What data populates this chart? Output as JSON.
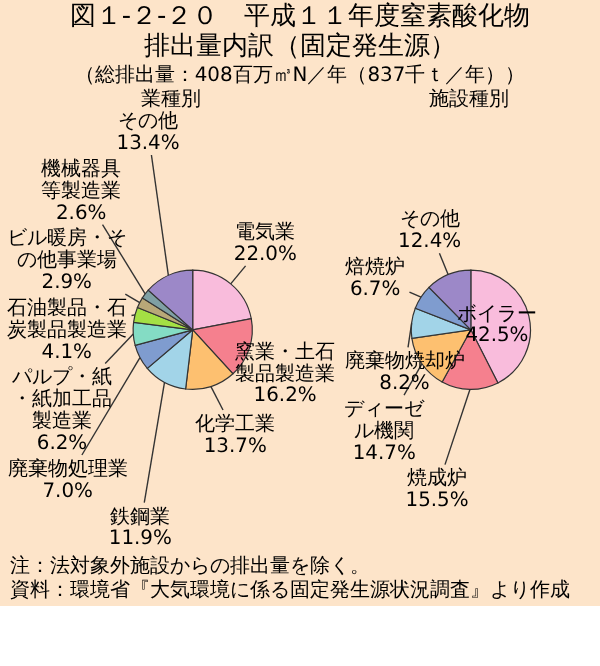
{
  "chart_data": [
    {
      "type": "pie",
      "title": "業種別",
      "categories": [
        "電気業",
        "窯業・土石製品製造業",
        "化学工業",
        "鉄鋼業",
        "廃棄物処理業",
        "パルプ・紙・紙加工品製造業",
        "石油製品・石炭製品製造業",
        "ビル暖房・その他事業場",
        "機械器具等製造業",
        "その他"
      ],
      "values": [
        22.0,
        16.2,
        13.7,
        11.9,
        7.0,
        6.2,
        4.1,
        2.9,
        2.6,
        13.4
      ],
      "value_labels": [
        "22.0%",
        "16.2%",
        "13.7%",
        "11.9%",
        "7.0%",
        "6.2%",
        "4.1%",
        "2.9%",
        "2.6%",
        "13.4%"
      ],
      "colors": [
        "#f9bcdc",
        "#f5808e",
        "#fdc070",
        "#a2d4e8",
        "#7f9ccf",
        "#84dcc4",
        "#a4e044",
        "#b8a878",
        "#7fa0a4",
        "#9c88c8"
      ],
      "annotations": [
        "図１-２-２０　平成１１年度窒素酸化物排出量内訳（固定発生源）",
        "（総排出量：408百万㎥N／年（837千ｔ／年））",
        "注：法対象外施設からの排出量を除く。",
        "資料：環境省『大気環境に係る固定発生源状況調査』より作成"
      ]
    },
    {
      "type": "pie",
      "title": "施設種別",
      "categories": [
        "ボイラー",
        "焼成炉",
        "ディーゼル機関",
        "廃棄物焼却炉",
        "焙焼炉",
        "その他"
      ],
      "values": [
        42.5,
        15.5,
        14.7,
        8.2,
        6.7,
        12.4
      ],
      "value_labels": [
        "42.5%",
        "15.5%",
        "14.7%",
        "8.2%",
        "6.7%",
        "12.4%"
      ],
      "colors": [
        "#f9bcdc",
        "#f5808e",
        "#fdc070",
        "#a2d4e8",
        "#7f9ccf",
        "#9c88c8"
      ]
    }
  ]
}
